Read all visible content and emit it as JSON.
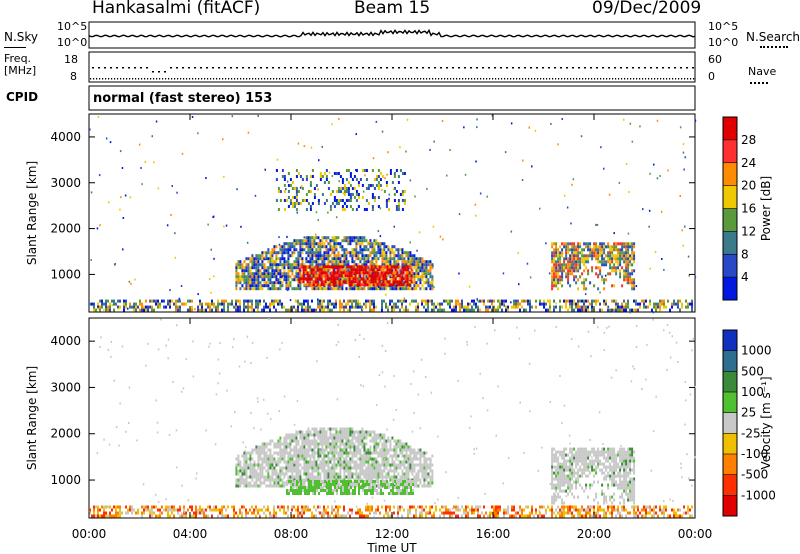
{
  "header": {
    "station": "Hankasalmi (fitACF)",
    "beam": "Beam 15",
    "date": "09/Dec/2009"
  },
  "top_panels": {
    "nsky_label": "N.Sky",
    "nsky_ticks": [
      "10^5",
      "10^0"
    ],
    "nsearch_label": "N.Search",
    "nsearch_ticks": [
      "10^5",
      "10^0"
    ],
    "freq_label_1": "Freq.",
    "freq_label_2": "[MHz]",
    "freq_ticks": [
      "18",
      "8"
    ],
    "nave_label": "Nave",
    "nave_ticks": [
      "60",
      "0"
    ],
    "cpid_label": "CPID",
    "cpid_text": "normal (fast stereo) 153"
  },
  "chart_data": [
    {
      "type": "heatmap",
      "panel": "power",
      "ylabel": "Slant Range [km]",
      "yticks": [
        1000,
        2000,
        3000,
        4000
      ],
      "ylim": [
        180,
        4500
      ],
      "xlim_hours": [
        0,
        24
      ],
      "colorbar_label": "Power [dB]",
      "colorbar_ticks": [
        "28",
        "24",
        "20",
        "16",
        "12",
        "8",
        "4"
      ],
      "colorbar_colors": [
        "#e00000",
        "#ff3030",
        "#ff8c00",
        "#f0c800",
        "#5a9a3a",
        "#3a7a8a",
        "#2848c8",
        "#0018e0"
      ],
      "regions": [
        {
          "t0": 0,
          "t1": 24,
          "r0": 200,
          "r1": 450,
          "level": "mixed-low"
        },
        {
          "t0": 5.8,
          "t1": 13.6,
          "r0": 700,
          "r1": 1900,
          "level": "arc"
        },
        {
          "t0": 8.3,
          "t1": 12.8,
          "r0": 800,
          "r1": 1200,
          "level": "strong"
        },
        {
          "t0": 7.4,
          "t1": 12.5,
          "r0": 2400,
          "r1": 3300,
          "level": "sparse"
        },
        {
          "t0": 18.3,
          "t1": 21.6,
          "r0": 700,
          "r1": 1700,
          "level": "patch"
        }
      ]
    },
    {
      "type": "heatmap",
      "panel": "velocity",
      "ylabel": "Slant Range [km]",
      "yticks": [
        1000,
        2000,
        3000,
        4000
      ],
      "ylim": [
        180,
        4500
      ],
      "xlim_hours": [
        0,
        24
      ],
      "xticks": [
        "00:00",
        "04:00",
        "08:00",
        "12:00",
        "16:00",
        "20:00",
        "00:00"
      ],
      "xlabel": "Time UT",
      "colorbar_label": "Velocity [m s⁻¹]",
      "colorbar_ticks": [
        "1000",
        "500",
        "100",
        "25",
        "-25",
        "-100",
        "-500",
        "-1000"
      ],
      "colorbar_colors": [
        "#1030c0",
        "#2e6e8e",
        "#3a8a3a",
        "#50c030",
        "#c8c8c8",
        "#f0c000",
        "#ff8000",
        "#ff3000",
        "#e00000"
      ],
      "regions": [
        {
          "t0": 0,
          "t1": 24,
          "r0": 200,
          "r1": 450,
          "level": "ground"
        },
        {
          "t0": 5.8,
          "t1": 13.6,
          "r0": 900,
          "r1": 2200,
          "level": "grey-arc"
        },
        {
          "t0": 7.8,
          "t1": 12.8,
          "r0": 700,
          "r1": 1000,
          "level": "green"
        },
        {
          "t0": 18.3,
          "t1": 21.6,
          "r0": 500,
          "r1": 1700,
          "level": "grey-patch"
        }
      ]
    }
  ]
}
